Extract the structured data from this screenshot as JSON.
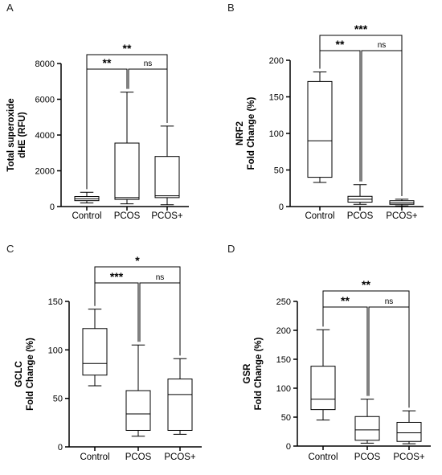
{
  "chart_data": [
    {
      "type": "box",
      "panel_label": "A",
      "ylabel_lines": [
        "Total superoxide",
        "dHE (RFU)"
      ],
      "categories": [
        "Control",
        "PCOS",
        "PCOS+"
      ],
      "ylim": [
        0,
        8000
      ],
      "yticks": [
        0,
        2000,
        4000,
        6000,
        8000
      ],
      "boxes": [
        {
          "min": 200,
          "q1": 330,
          "median": 430,
          "q3": 560,
          "max": 800
        },
        {
          "min": 150,
          "q1": 400,
          "median": 500,
          "q3": 3550,
          "max": 6400
        },
        {
          "min": 100,
          "q1": 500,
          "median": 600,
          "q3": 2800,
          "max": 4500
        }
      ],
      "comparisons": [
        {
          "from": 0,
          "to": 2,
          "label": "**"
        },
        {
          "from": 0,
          "to": 1,
          "label": "**"
        },
        {
          "from": 1,
          "to": 2,
          "label": "ns"
        }
      ]
    },
    {
      "type": "box",
      "panel_label": "B",
      "ylabel_lines": [
        "NRF2",
        "Fold Change  (%)"
      ],
      "categories": [
        "Control",
        "PCOS",
        "PCOS+"
      ],
      "ylim": [
        0,
        200
      ],
      "yticks": [
        0,
        50,
        100,
        150,
        200
      ],
      "boxes": [
        {
          "min": 33,
          "q1": 40,
          "median": 90,
          "q3": 171,
          "max": 184
        },
        {
          "min": 3,
          "q1": 6,
          "median": 10,
          "q3": 14,
          "max": 30
        },
        {
          "min": 1,
          "q1": 3,
          "median": 5,
          "q3": 8,
          "max": 10
        }
      ],
      "comparisons": [
        {
          "from": 0,
          "to": 2,
          "label": "***"
        },
        {
          "from": 0,
          "to": 1,
          "label": "**"
        },
        {
          "from": 1,
          "to": 2,
          "label": "ns"
        }
      ]
    },
    {
      "type": "box",
      "panel_label": "C",
      "ylabel_lines": [
        "GCLC",
        "Fold Change  (%)"
      ],
      "categories": [
        "Control",
        "PCOS",
        "PCOS+"
      ],
      "ylim": [
        0,
        150
      ],
      "yticks": [
        0,
        50,
        100,
        150
      ],
      "boxes": [
        {
          "min": 63,
          "q1": 74,
          "median": 86,
          "q3": 122,
          "max": 142
        },
        {
          "min": 11,
          "q1": 17,
          "median": 34,
          "q3": 58,
          "max": 105
        },
        {
          "min": 13,
          "q1": 17,
          "median": 54,
          "q3": 70,
          "max": 91
        }
      ],
      "comparisons": [
        {
          "from": 0,
          "to": 2,
          "label": "*"
        },
        {
          "from": 0,
          "to": 1,
          "label": "***"
        },
        {
          "from": 1,
          "to": 2,
          "label": "ns"
        }
      ]
    },
    {
      "type": "box",
      "panel_label": "D",
      "ylabel_lines": [
        "GSR",
        "Fold Change  (%)"
      ],
      "categories": [
        "Control",
        "PCOS",
        "PCOS+"
      ],
      "ylim": [
        0,
        250
      ],
      "yticks": [
        0,
        50,
        100,
        150,
        200,
        250
      ],
      "boxes": [
        {
          "min": 45,
          "q1": 63,
          "median": 81,
          "q3": 138,
          "max": 201
        },
        {
          "min": 5,
          "q1": 10,
          "median": 28,
          "q3": 51,
          "max": 81
        },
        {
          "min": 4,
          "q1": 8,
          "median": 23,
          "q3": 41,
          "max": 61
        }
      ],
      "comparisons": [
        {
          "from": 0,
          "to": 2,
          "label": "**"
        },
        {
          "from": 0,
          "to": 1,
          "label": "**"
        },
        {
          "from": 1,
          "to": 2,
          "label": "ns"
        }
      ]
    }
  ]
}
